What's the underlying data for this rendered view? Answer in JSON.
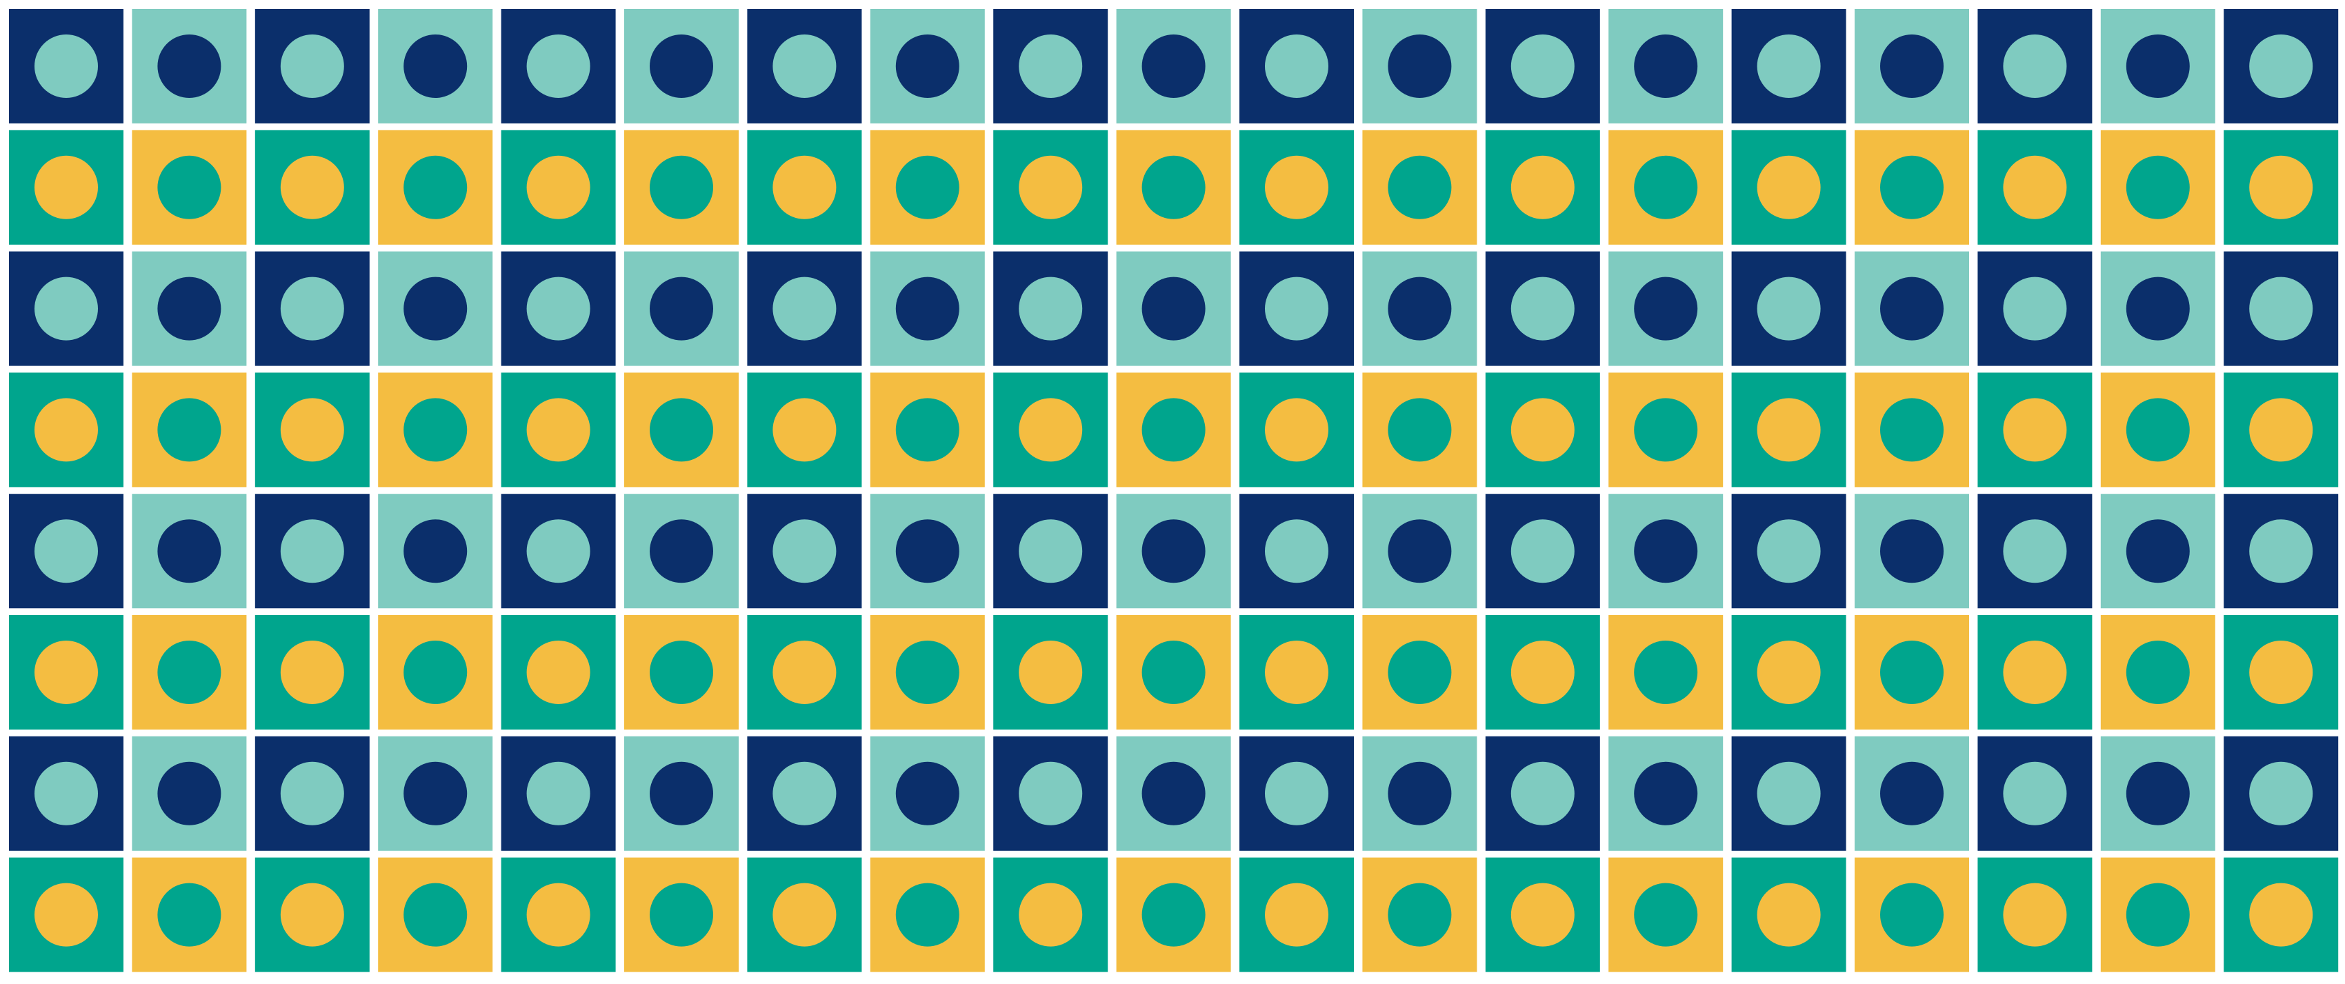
{
  "pattern": {
    "columns": 19,
    "rows": 8,
    "colors": {
      "background": "#ffffff",
      "navy": "#0b2f6b",
      "mint": "#7fcbc0",
      "teal": "#00a58d",
      "yellow": "#f4bd41"
    },
    "row_schemes": [
      {
        "name": "navy-mint",
        "even_tile": "navy",
        "even_dot": "mint",
        "odd_tile": "mint",
        "odd_dot": "navy"
      },
      {
        "name": "teal-yellow",
        "even_tile": "teal",
        "even_dot": "yellow",
        "odd_tile": "yellow",
        "odd_dot": "teal"
      }
    ]
  }
}
